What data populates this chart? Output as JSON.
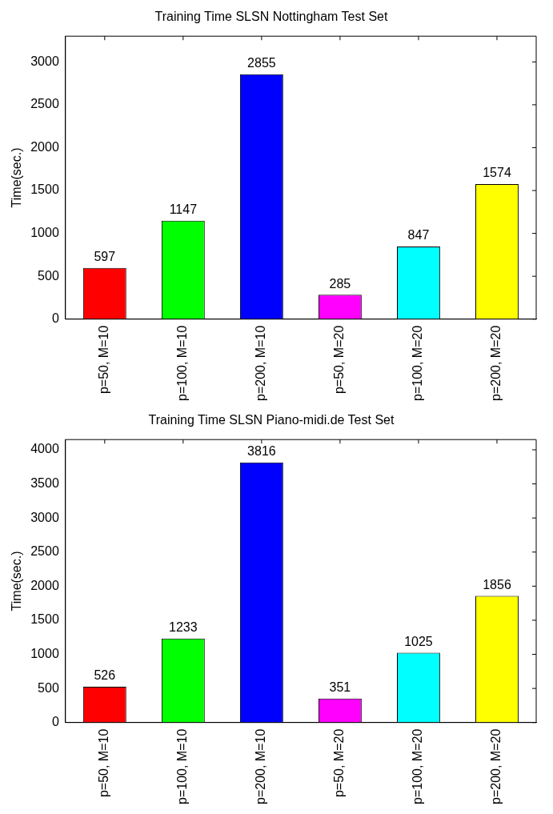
{
  "chart_data": [
    {
      "type": "bar",
      "title": "Training Time SLSN Nottingham Test Set",
      "ylabel": "Time(sec.)",
      "categories": [
        "p=50, M=10",
        "p=100, M=10",
        "p=200, M=10",
        "p=50, M=20",
        "p=100, M=20",
        "p=200, M=20"
      ],
      "values": [
        597,
        1147,
        2855,
        285,
        847,
        1574
      ],
      "colors": [
        "#ff0000",
        "#00ff00",
        "#0000ff",
        "#ff00ff",
        "#00ffff",
        "#ffff00"
      ],
      "ylim": [
        0,
        3300
      ],
      "yticks": [
        0,
        500,
        1000,
        1500,
        2000,
        2500,
        3000
      ],
      "data_labels": true,
      "grid": false,
      "legend": false
    },
    {
      "type": "bar",
      "title": "Training Time SLSN Piano-midi.de Test Set",
      "ylabel": "Time(sec.)",
      "categories": [
        "p=50, M=10",
        "p=100, M=10",
        "p=200, M=10",
        "p=50, M=20",
        "p=100, M=20",
        "p=200, M=20"
      ],
      "values": [
        526,
        1233,
        3816,
        351,
        1025,
        1856
      ],
      "colors": [
        "#ff0000",
        "#00ff00",
        "#0000ff",
        "#ff00ff",
        "#00ffff",
        "#ffff00"
      ],
      "ylim": [
        0,
        4150
      ],
      "yticks": [
        0,
        500,
        1000,
        1500,
        2000,
        2500,
        3000,
        3500,
        4000
      ],
      "data_labels": true,
      "grid": false,
      "legend": false
    }
  ]
}
